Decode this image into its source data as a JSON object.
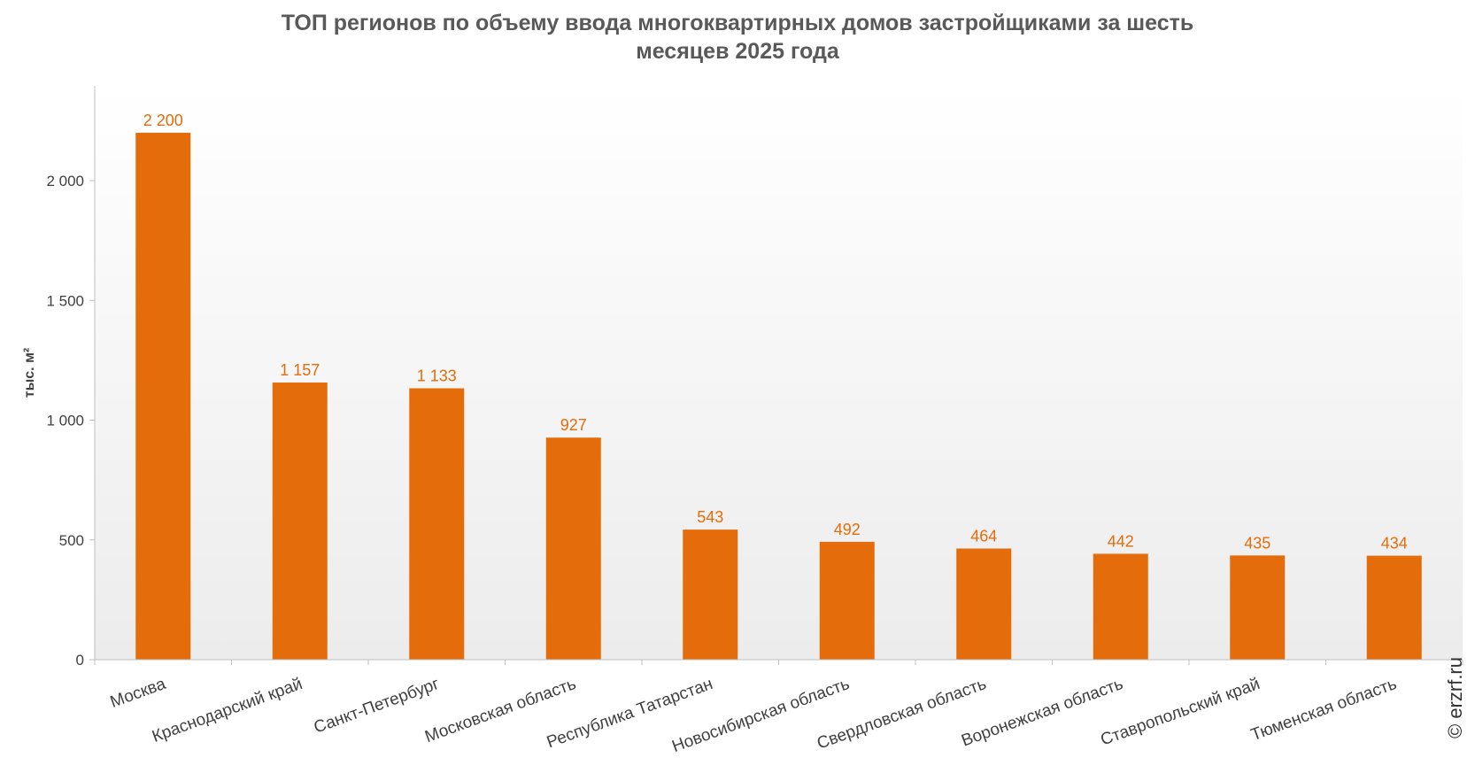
{
  "chart_data": {
    "type": "bar",
    "title_line1": "ТОП регионов по объему ввода многоквартирных домов застройщиками за шесть",
    "title_line2": "месяцев 2025 года",
    "ylabel": "тыс. м²",
    "categories": [
      "Москва",
      "Краснодарский край",
      "Санкт-Петербург",
      "Московская область",
      "Республика Татарстан",
      "Новосибирская область",
      "Свердловская область",
      "Воронежская область",
      "Ставропольский край",
      "Тюменская область"
    ],
    "values": [
      2200,
      1157,
      1133,
      927,
      543,
      492,
      464,
      442,
      435,
      434
    ],
    "value_labels": [
      "2 200",
      "1 157",
      "1 133",
      "927",
      "543",
      "492",
      "464",
      "442",
      "435",
      "434"
    ],
    "yticks": [
      0,
      500,
      1000,
      1500,
      2000
    ],
    "ytick_labels": [
      "0",
      "500",
      "1 000",
      "1 500",
      "2 000"
    ],
    "ylim": [
      0,
      2400
    ],
    "grid": false,
    "bar_color": "#E46C0A",
    "label_color": "#E46C0A"
  },
  "credit": "© erzrf.ru"
}
